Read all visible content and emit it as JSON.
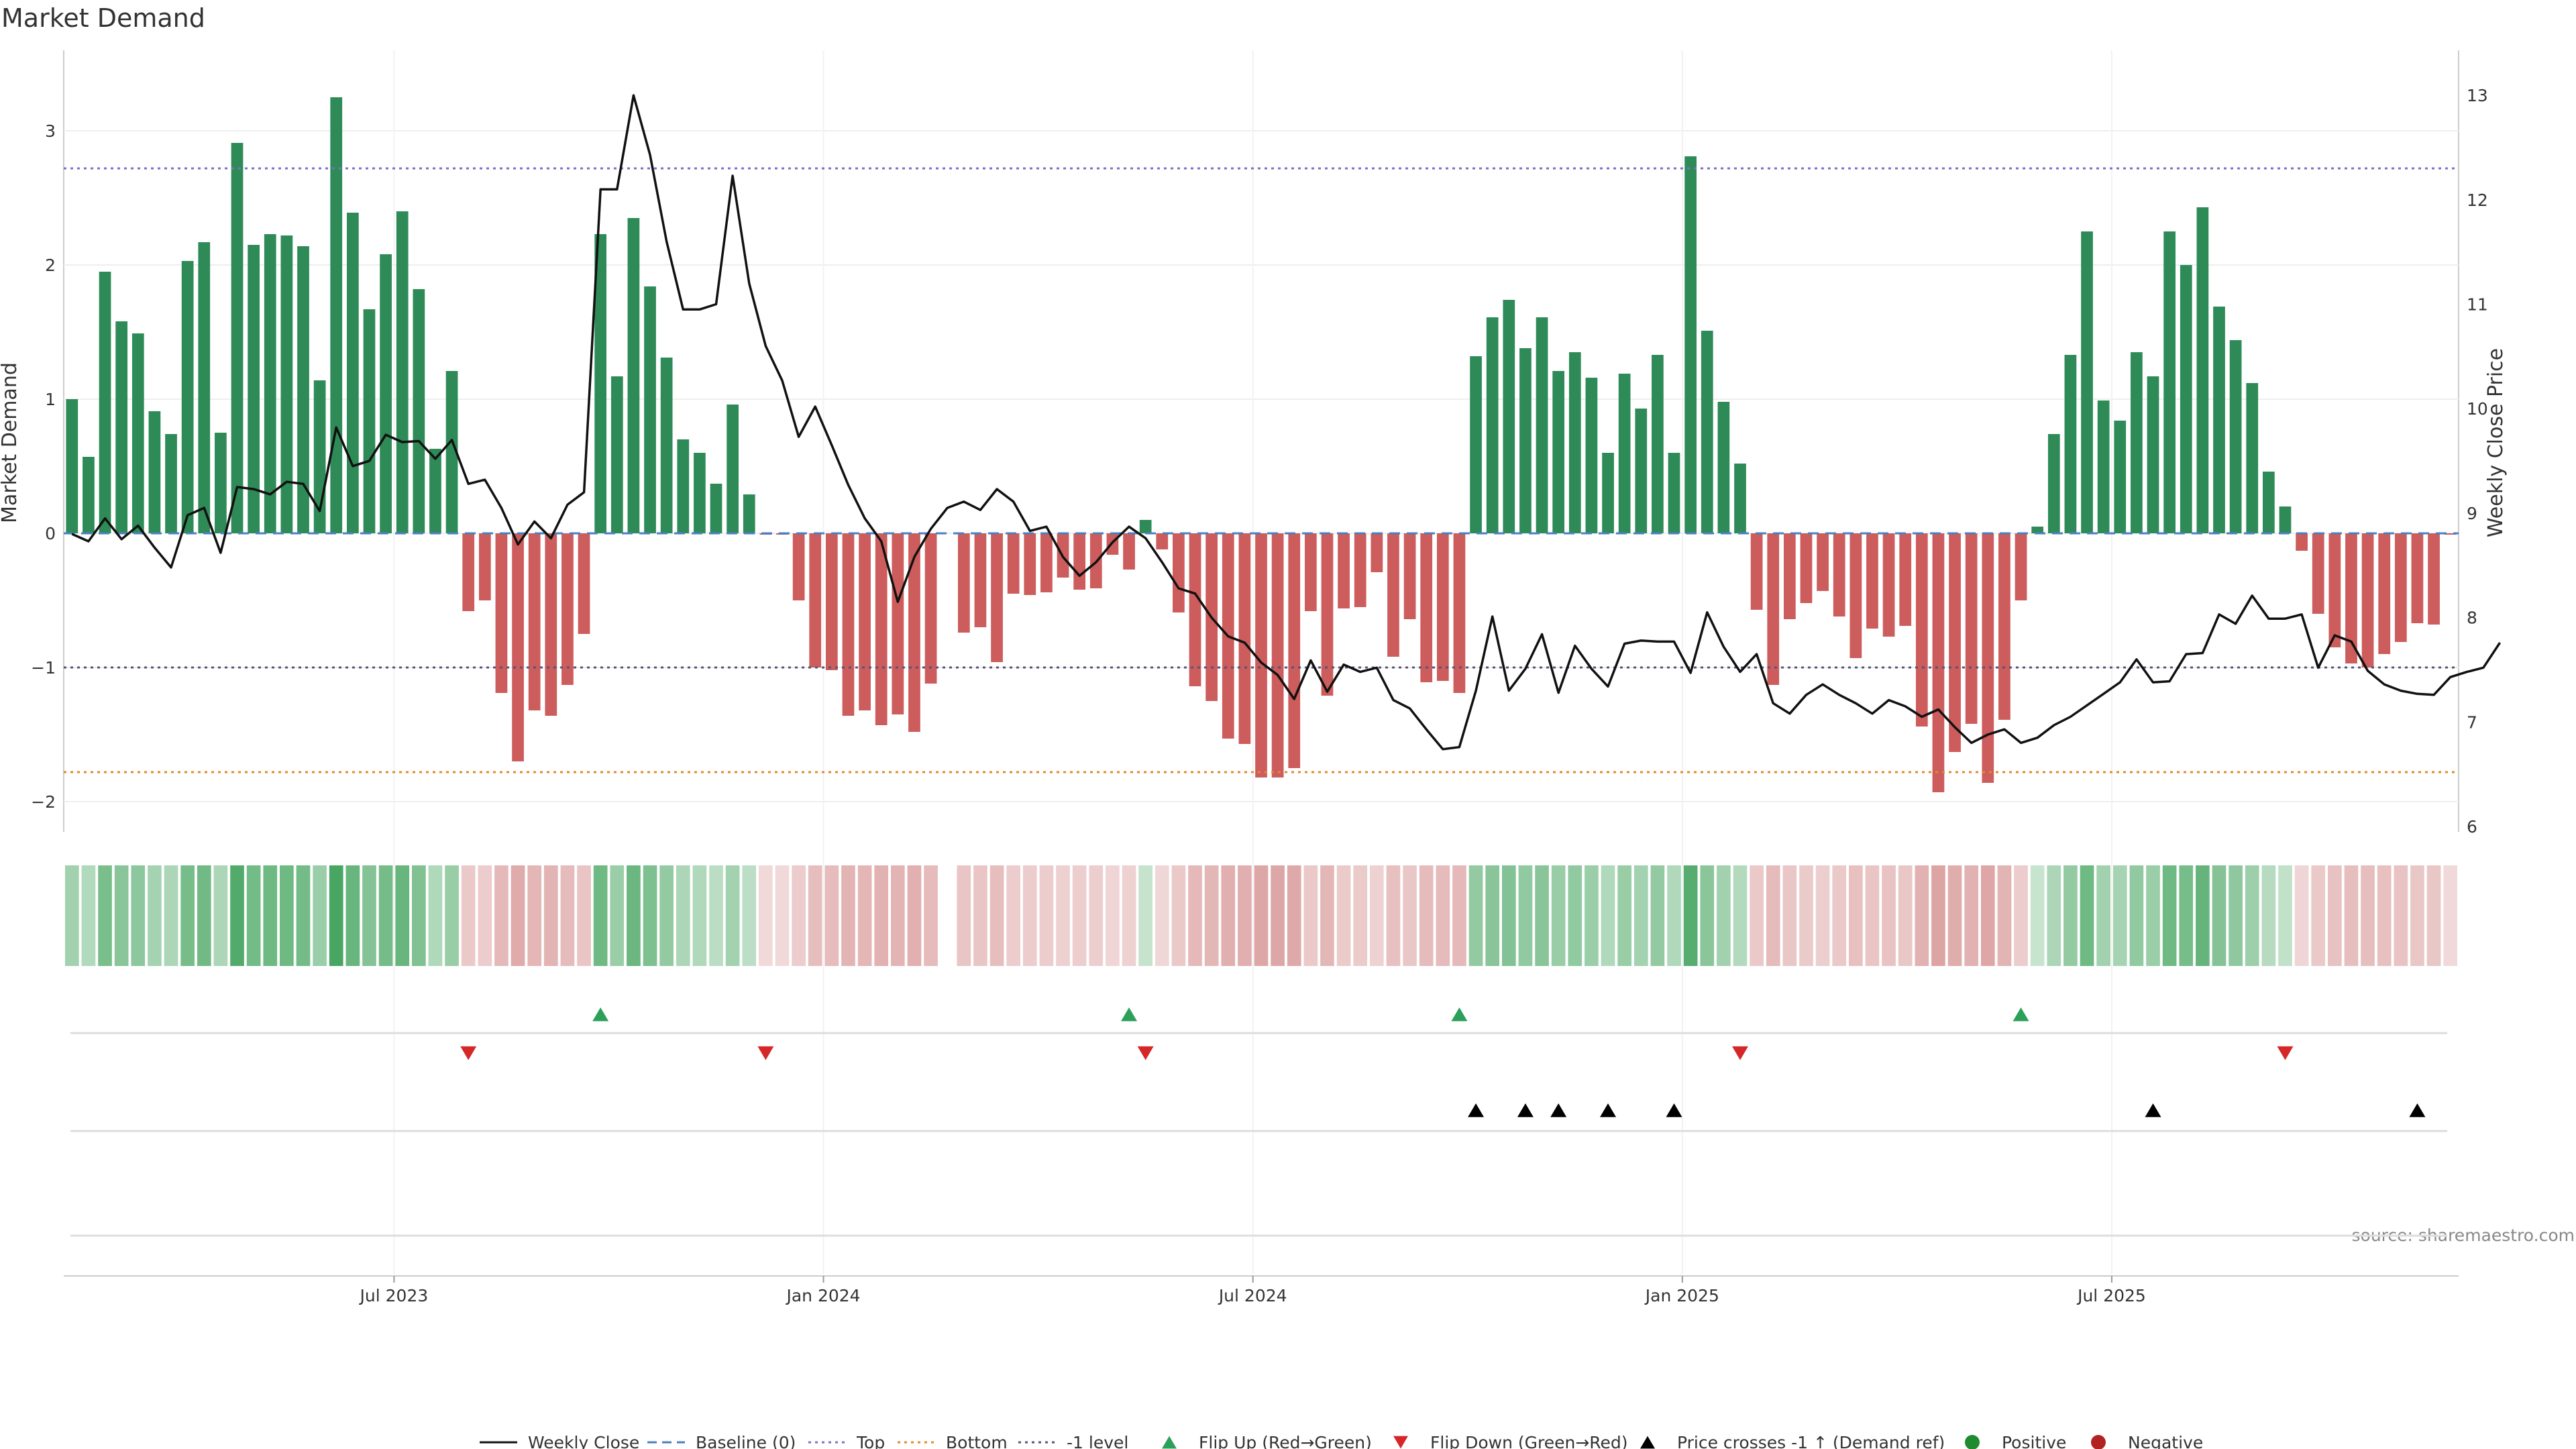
{
  "chart_data": {
    "type": "bar",
    "title": "Market Demand",
    "ylabel": "Market Demand",
    "y2label": "Weekly Close Price",
    "ylim": [
      -2.2,
      3.5
    ],
    "y2lim": [
      5.95,
      13.3
    ],
    "yticks": [
      -2,
      -1,
      0,
      1,
      2,
      3
    ],
    "y2ticks": [
      6,
      7,
      8,
      9,
      10,
      11,
      12,
      13
    ],
    "xticks": [
      "Jul 2023",
      "Jan 2024",
      "Jul 2024",
      "Jan 2025",
      "Jul 2025"
    ],
    "xtick_weeks": [
      19.5,
      45.5,
      71.5,
      97.5,
      123.5
    ],
    "levels": {
      "top": 2.72,
      "bottom": -1.78,
      "minus_one": -1.0,
      "baseline": 0
    },
    "demand": [
      1.0,
      0.57,
      1.95,
      1.58,
      1.49,
      0.91,
      0.74,
      2.03,
      2.17,
      0.75,
      2.91,
      2.15,
      2.23,
      2.22,
      2.14,
      1.14,
      3.25,
      2.39,
      1.67,
      2.08,
      2.4,
      1.82,
      0.63,
      1.21,
      -0.58,
      -0.5,
      -1.19,
      -1.7,
      -1.32,
      -1.36,
      -1.13,
      -0.75,
      2.23,
      1.17,
      2.35,
      1.84,
      1.31,
      0.7,
      0.6,
      0.37,
      0.96,
      0.29,
      -0.01,
      -0.01,
      -0.5,
      -1.0,
      -1.02,
      -1.36,
      -1.32,
      -1.43,
      -1.35,
      -1.48,
      -1.12,
      0,
      -0.74,
      -0.7,
      -0.96,
      -0.45,
      -0.46,
      -0.44,
      -0.33,
      -0.42,
      -0.41,
      -0.16,
      -0.27,
      0.1,
      -0.12,
      -0.59,
      -1.14,
      -1.25,
      -1.53,
      -1.57,
      -1.82,
      -1.82,
      -1.75,
      -0.58,
      -1.21,
      -0.56,
      -0.55,
      -0.29,
      -0.92,
      -0.64,
      -1.11,
      -1.1,
      -1.19,
      1.32,
      1.61,
      1.74,
      1.38,
      1.61,
      1.21,
      1.35,
      1.16,
      0.6,
      1.19,
      0.93,
      1.33,
      0.6,
      2.81,
      1.51,
      0.98,
      0.52,
      -0.57,
      -1.13,
      -0.64,
      -0.52,
      -0.43,
      -0.62,
      -0.93,
      -0.71,
      -0.77,
      -0.69,
      -1.44,
      -1.93,
      -1.63,
      -1.42,
      -1.86,
      -1.39,
      -0.5,
      0.05,
      0.74,
      1.33,
      2.25,
      0.99,
      0.84,
      1.35,
      1.17,
      2.25,
      2.0,
      2.43,
      1.69,
      1.44,
      1.12,
      0.46,
      0.2,
      -0.13,
      -0.6,
      -0.85,
      -0.97,
      -1.0,
      -0.9,
      -0.81,
      -0.67,
      -0.68,
      -0.01
    ],
    "price": [
      8.8,
      8.73,
      8.95,
      8.75,
      8.88,
      8.67,
      8.48,
      8.98,
      9.05,
      8.62,
      9.25,
      9.23,
      9.18,
      9.3,
      9.28,
      9.02,
      9.82,
      9.45,
      9.5,
      9.75,
      9.68,
      9.69,
      9.52,
      9.7,
      9.28,
      9.32,
      9.05,
      8.7,
      8.92,
      8.76,
      9.08,
      9.2,
      12.1,
      12.1,
      13.0,
      12.43,
      11.6,
      10.95,
      10.95,
      11.0,
      12.23,
      11.2,
      10.6,
      10.27,
      9.73,
      10.02,
      9.65,
      9.27,
      8.95,
      8.73,
      8.15,
      8.58,
      8.85,
      9.05,
      9.11,
      9.03,
      9.23,
      9.11,
      8.83,
      8.87,
      8.58,
      8.4,
      8.53,
      8.72,
      8.87,
      8.76,
      8.53,
      8.28,
      8.23,
      8.0,
      7.82,
      7.76,
      7.57,
      7.45,
      7.22,
      7.59,
      7.29,
      7.55,
      7.48,
      7.52,
      7.21,
      7.13,
      6.93,
      6.74,
      6.76,
      7.3,
      8.01,
      7.3,
      7.51,
      7.84,
      7.28,
      7.73,
      7.51,
      7.34,
      7.75,
      7.78,
      7.77,
      7.77,
      7.47,
      8.05,
      7.72,
      7.48,
      7.65,
      7.18,
      7.08,
      7.26,
      7.36,
      7.26,
      7.18,
      7.08,
      7.21,
      7.15,
      7.05,
      7.12,
      6.95,
      6.8,
      6.88,
      6.93,
      6.8,
      6.85,
      6.97,
      7.05,
      7.16,
      7.27,
      7.38,
      7.6,
      7.38,
      7.39,
      7.65,
      7.66,
      8.03,
      7.94,
      8.21,
      7.99,
      7.99,
      8.03,
      7.52,
      7.83,
      7.77,
      7.49,
      7.36,
      7.3,
      7.27,
      7.26,
      7.43,
      7.48,
      7.52,
      7.76
    ],
    "flip_up_weeks": [
      32,
      64,
      84,
      118
    ],
    "flip_down_weeks": [
      24,
      42,
      65,
      101,
      134
    ],
    "cross_weeks": [
      85,
      88,
      90,
      93,
      97,
      126,
      142
    ],
    "legend": [
      {
        "label": "Weekly Close",
        "kind": "line",
        "color": "#111111"
      },
      {
        "label": "Baseline (0)",
        "kind": "dash",
        "color": "#4a7fc1"
      },
      {
        "label": "Top",
        "kind": "dot",
        "color": "#7b6fc8"
      },
      {
        "label": "Bottom",
        "kind": "dot",
        "color": "#e08a2a"
      },
      {
        "label": "-1 level",
        "kind": "dot",
        "color": "#555577"
      },
      {
        "label": "Flip Up (Red→Green)",
        "kind": "tri-up",
        "color": "#2ca05a"
      },
      {
        "label": "Flip Down (Green→Red)",
        "kind": "tri-down",
        "color": "#d62728"
      },
      {
        "label": "Price crosses -1 ↑ (Demand ref)",
        "kind": "tri-up",
        "color": "#000000"
      },
      {
        "label": "Positive",
        "kind": "circle",
        "color": "#1f8a2e"
      },
      {
        "label": "Negative",
        "kind": "circle",
        "color": "#b22222"
      }
    ],
    "source": "source: sharemaestro.com",
    "colors": {
      "positive_bar": "#2e8b57",
      "negative_bar": "#cd5c5c",
      "price_line": "#111111"
    }
  }
}
